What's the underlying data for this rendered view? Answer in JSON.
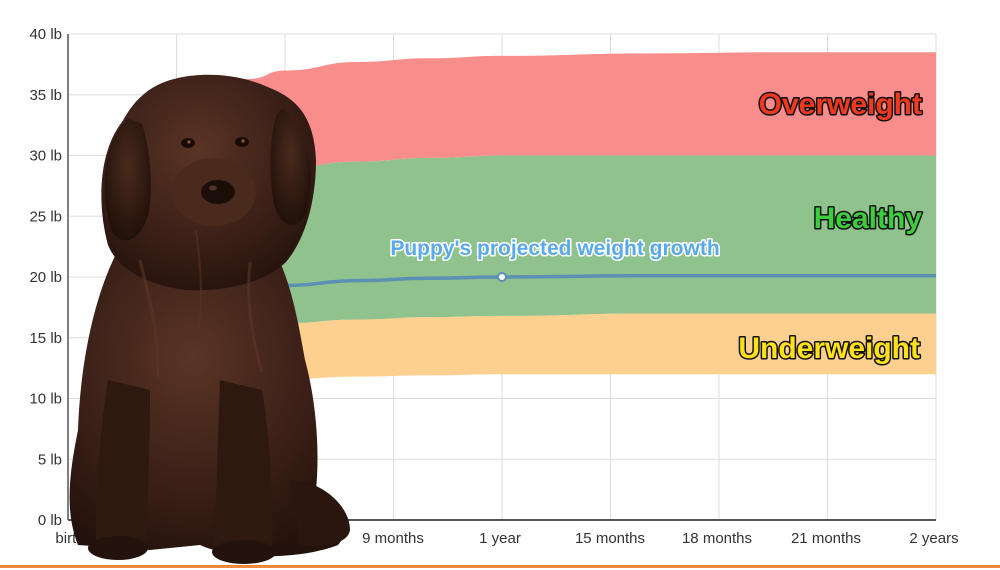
{
  "chart_data": {
    "type": "area",
    "x_ticks": [
      "birth",
      "9 months",
      "1 year",
      "15 months",
      "18 months",
      "21 months",
      "2 years"
    ],
    "y_ticks": [
      "0 lb",
      "5 lb",
      "10 lb",
      "15 lb",
      "20 lb",
      "25 lb",
      "30 lb",
      "35 lb",
      "40 lb"
    ],
    "ylim": [
      0,
      40
    ],
    "xlim_months": [
      0,
      24
    ],
    "grid": true,
    "bands": [
      {
        "name": "Underweight",
        "color": "#fdd08f",
        "label_color": "#ffe119",
        "x_months": [
          2,
          3,
          4,
          5,
          6,
          8,
          10,
          12,
          16,
          20,
          24
        ],
        "lower": [
          10.5,
          11.0,
          11.3,
          11.5,
          11.6,
          11.8,
          11.9,
          12.0,
          12.0,
          12.0,
          12.0
        ],
        "upper": [
          14.5,
          15.2,
          15.6,
          15.9,
          16.2,
          16.5,
          16.7,
          16.8,
          17.0,
          17.0,
          17.0
        ]
      },
      {
        "name": "Healthy",
        "color": "#90c28d",
        "label_color": "#3ccc3c",
        "x_months": [
          2,
          3,
          4,
          5,
          6,
          8,
          10,
          12,
          16,
          20,
          24
        ],
        "lower": [
          14.5,
          15.2,
          15.6,
          15.9,
          16.2,
          16.5,
          16.7,
          16.8,
          17.0,
          17.0,
          17.0
        ],
        "upper": [
          25.0,
          26.8,
          27.8,
          28.5,
          29.0,
          29.5,
          29.8,
          30.0,
          30.0,
          30.0,
          30.0
        ]
      },
      {
        "name": "Overweight",
        "color": "#f98d8b",
        "label_color": "#f0391f",
        "x_months": [
          2,
          3,
          4,
          5,
          6,
          8,
          10,
          12,
          16,
          20,
          24
        ],
        "lower": [
          25.0,
          26.8,
          27.8,
          28.5,
          29.0,
          29.5,
          29.8,
          30.0,
          30.0,
          30.0,
          30.0
        ],
        "upper": [
          28.0,
          33.0,
          35.0,
          36.3,
          37.0,
          37.7,
          38.0,
          38.2,
          38.4,
          38.5,
          38.5
        ]
      }
    ],
    "series": [
      {
        "name": "Puppy's projected weight growth",
        "color": "#5b8fb3",
        "x_months": [
          2,
          3,
          4,
          6,
          8,
          10,
          12,
          16,
          20,
          24
        ],
        "values": [
          17.5,
          18.2,
          18.7,
          19.3,
          19.7,
          19.9,
          20.0,
          20.1,
          20.1,
          20.1
        ],
        "marker": {
          "x_months": 12,
          "value": 20.0
        }
      }
    ],
    "image_description": "brown fluffy Newfoundland puppy sitting, overlaid on the left portion of the chart"
  },
  "colors": {
    "grid": "#dddddd",
    "axis": "#555555",
    "bottom_rule": "#f08a3a",
    "puppy_fur": "#3b2018"
  }
}
